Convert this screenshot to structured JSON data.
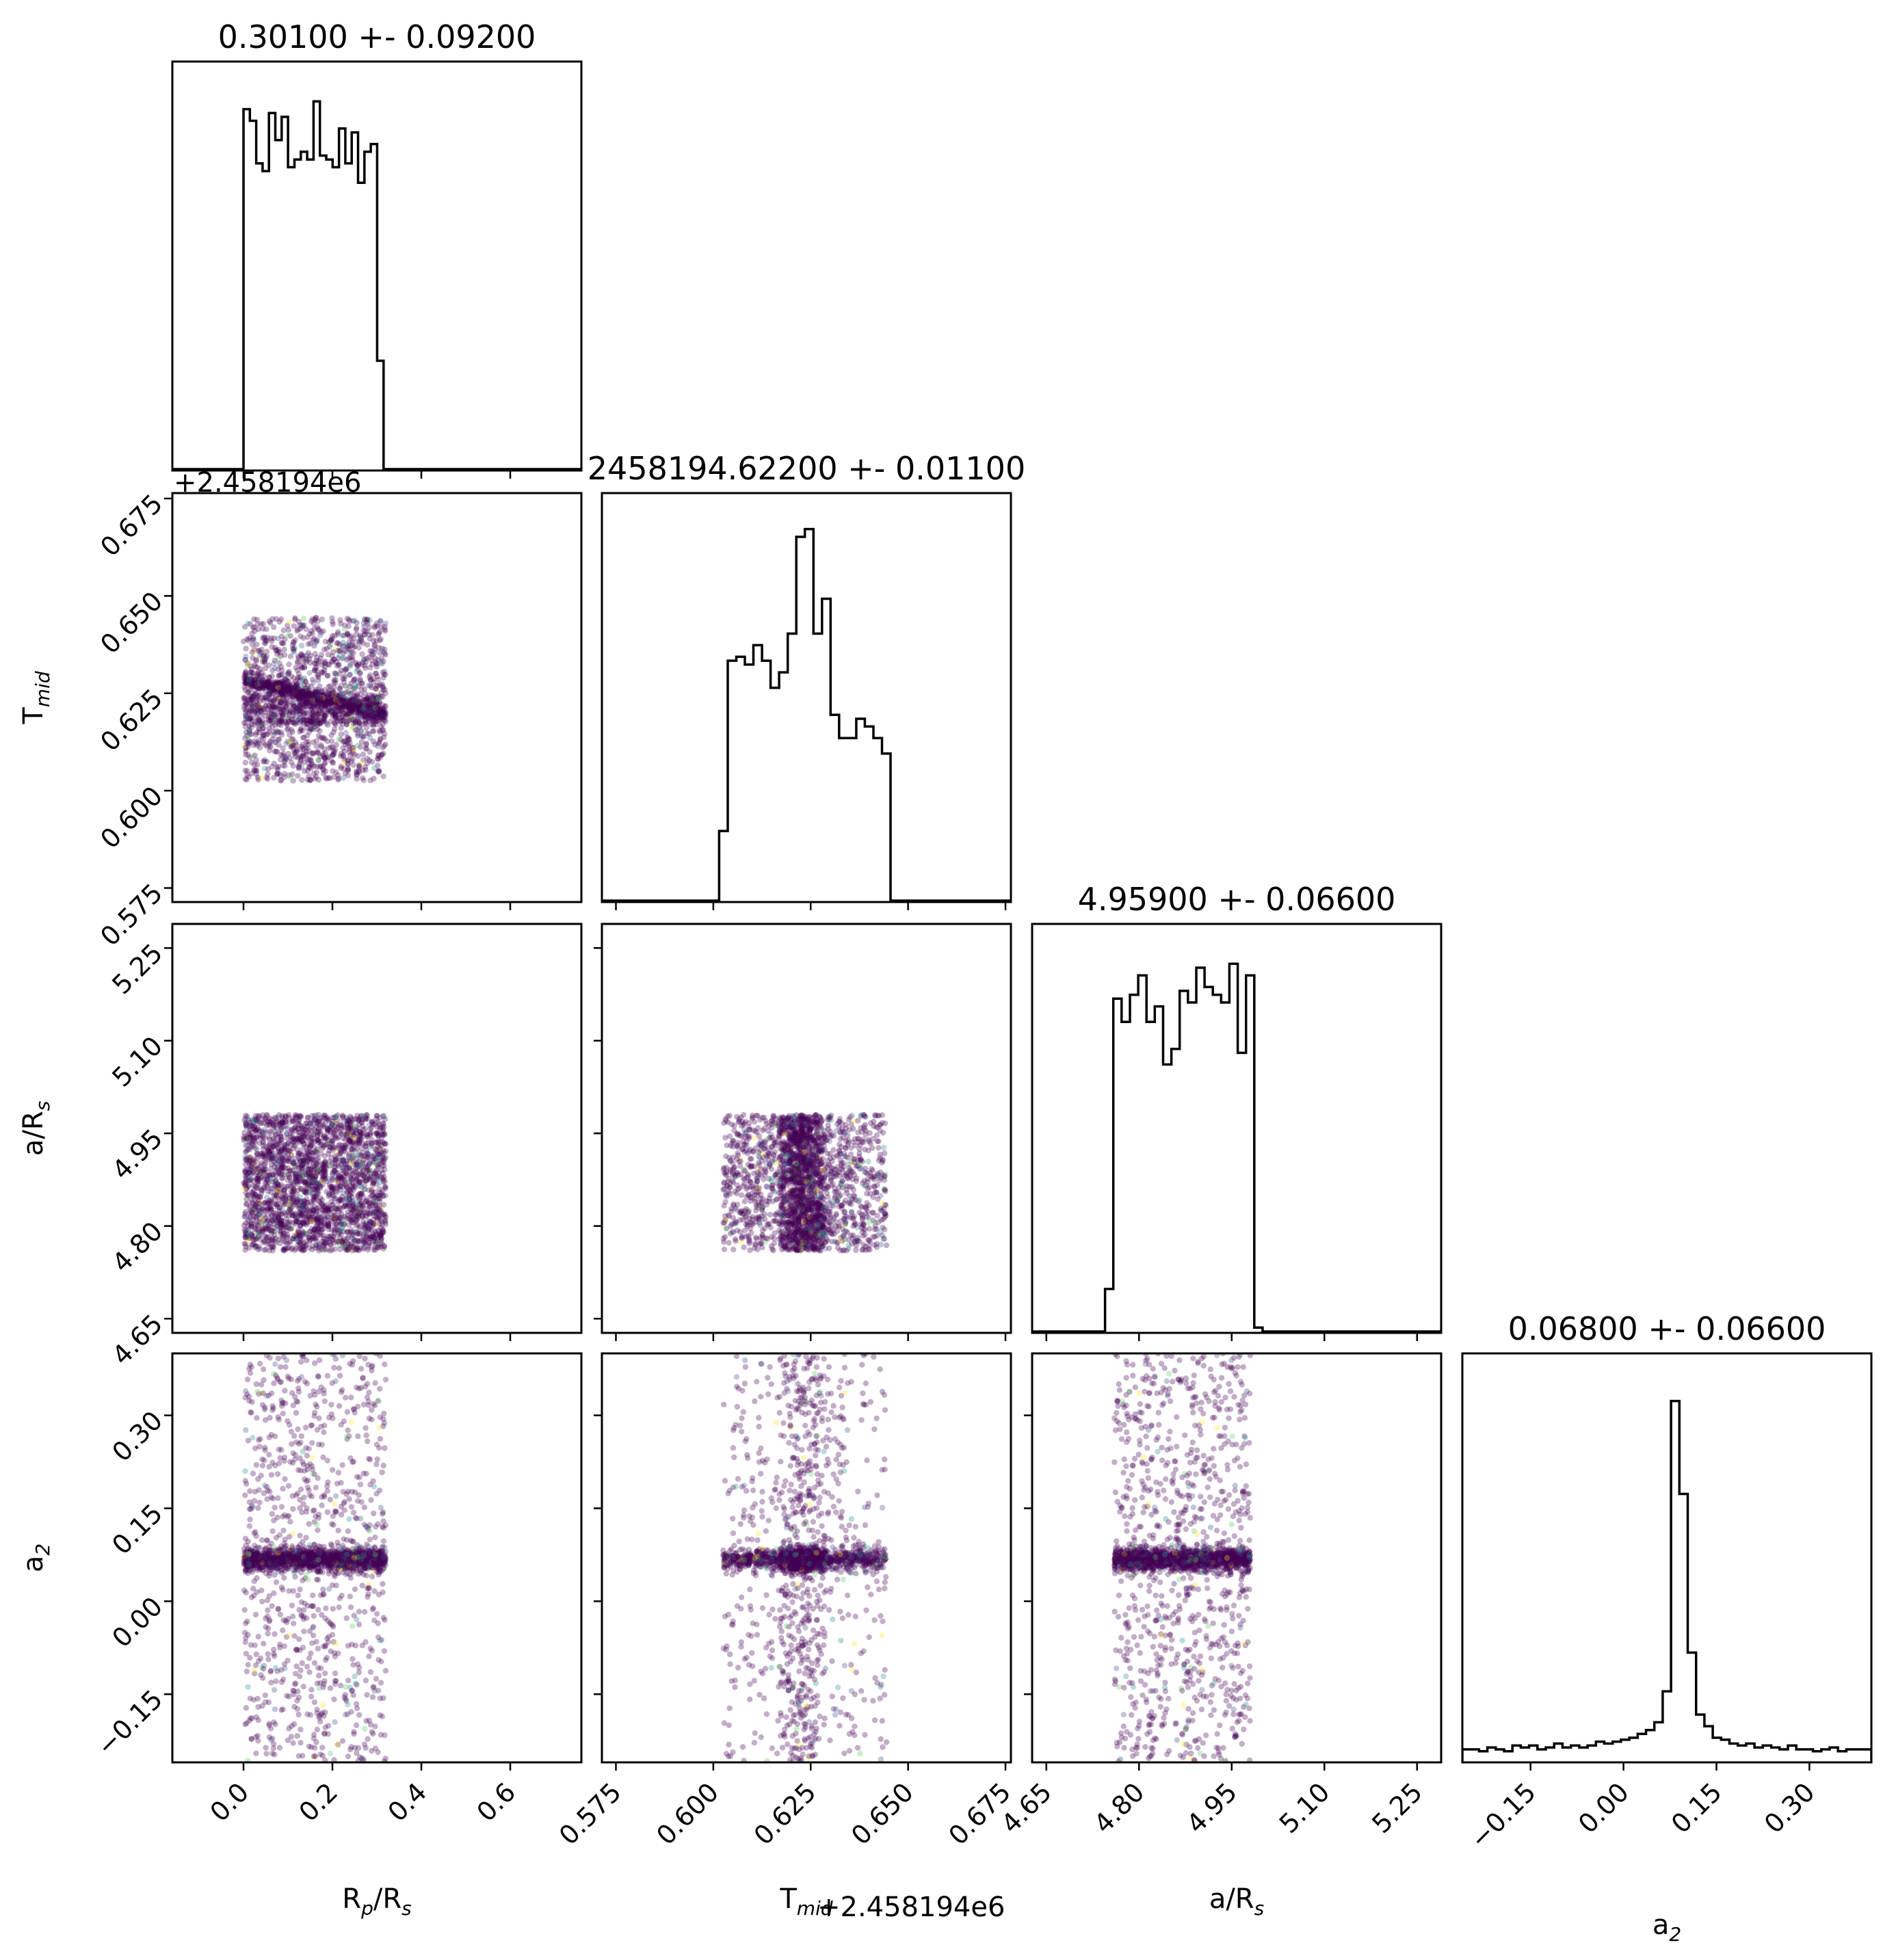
{
  "chart_data": {
    "type": "scatter",
    "subtype": "corner-plot",
    "parameters": [
      {
        "key": "rprs",
        "label_main": "R",
        "label_sub1": "p",
        "label_mid": "/R",
        "label_sub2": "s",
        "label": "Rp/Rs",
        "title": "0.30100 +- 0.09200",
        "range": [
          -0.16,
          0.76
        ],
        "ticks": [
          "0.0",
          "0.2",
          "0.4",
          "0.6"
        ],
        "tick_values": [
          0.0,
          0.2,
          0.4,
          0.6
        ],
        "hist_edges": [
          0.0,
          0.315
        ],
        "hist": [
          0.93,
          0.9,
          0.79,
          0.77,
          0.92,
          0.85,
          0.91,
          0.78,
          0.8,
          0.82,
          0.8,
          0.95,
          0.81,
          0.8,
          0.78,
          0.88,
          0.79,
          0.87,
          0.74,
          0.82,
          0.84,
          0.28
        ]
      },
      {
        "key": "tmid",
        "label_main": "T",
        "label_sub1": "mid",
        "label_mid": "",
        "label_sub2": "",
        "label": "Tmid",
        "title": "2458194.62200 +- 0.01100",
        "range": [
          0.5714,
          0.6764
        ],
        "offset_text": "+2.458194e6",
        "ticks": [
          "0.575",
          "0.600",
          "0.625",
          "0.650",
          "0.675"
        ],
        "tick_values": [
          0.575,
          0.6,
          0.625,
          0.65,
          0.675
        ],
        "hist_edges": [
          0.6015,
          0.6455
        ],
        "hist": [
          0.18,
          0.62,
          0.63,
          0.61,
          0.66,
          0.62,
          0.55,
          0.59,
          0.69,
          0.94,
          0.96,
          0.69,
          0.78,
          0.48,
          0.42,
          0.42,
          0.47,
          0.45,
          0.42,
          0.38
        ]
      },
      {
        "key": "ars",
        "label_main": "a/R",
        "label_sub1": "s",
        "label_mid": "",
        "label_sub2": "",
        "label": "a/Rs",
        "title": "4.95900 +- 0.06600",
        "range": [
          4.627,
          5.289
        ],
        "ticks": [
          "4.65",
          "4.80",
          "4.95",
          "5.10",
          "5.25"
        ],
        "tick_values": [
          4.65,
          4.8,
          4.95,
          5.1,
          5.25
        ],
        "hist_edges": [
          4.745,
          5.0
        ],
        "hist": [
          0.11,
          0.86,
          0.8,
          0.87,
          0.92,
          0.8,
          0.84,
          0.69,
          0.73,
          0.88,
          0.85,
          0.94,
          0.89,
          0.87,
          0.85,
          0.95,
          0.72,
          0.92,
          0.01
        ]
      },
      {
        "key": "a2",
        "label_main": "a",
        "label_sub1": "2",
        "label_mid": "",
        "label_sub2": "",
        "label": "a2",
        "title": "0.06800 +- 0.06600",
        "range": [
          -0.26,
          0.4
        ],
        "ticks": [
          "−0.15",
          "0.00",
          "0.15",
          "0.30"
        ],
        "tick_values": [
          -0.15,
          0.0,
          0.15,
          0.3
        ],
        "hist_edges": [
          -0.26,
          0.4
        ],
        "hist": [
          0.03,
          0.03,
          0.025,
          0.035,
          0.03,
          0.025,
          0.04,
          0.035,
          0.04,
          0.03,
          0.035,
          0.045,
          0.035,
          0.04,
          0.035,
          0.04,
          0.05,
          0.045,
          0.05,
          0.055,
          0.06,
          0.07,
          0.08,
          0.1,
          0.18,
          0.93,
          0.69,
          0.28,
          0.12,
          0.09,
          0.06,
          0.055,
          0.045,
          0.04,
          0.045,
          0.035,
          0.04,
          0.035,
          0.03,
          0.04,
          0.03,
          0.03,
          0.025,
          0.03,
          0.035,
          0.025,
          0.03,
          0.03,
          0.03
        ]
      }
    ],
    "samples": {
      "rprs": {
        "uniform": [
          0.0,
          0.32
        ]
      },
      "tmid": {
        "uniform": [
          0.6025,
          0.6445
        ]
      },
      "ars": {
        "uniform": [
          4.76,
          4.98
        ]
      },
      "a2": {
        "core_center": 0.068,
        "core_width": 0.018,
        "tail_range": [
          -0.26,
          0.4
        ]
      }
    },
    "colormap": [
      "#440154",
      "#3b528b",
      "#21918c",
      "#5ec962",
      "#fde725"
    ],
    "grid": false,
    "legend": "none"
  }
}
